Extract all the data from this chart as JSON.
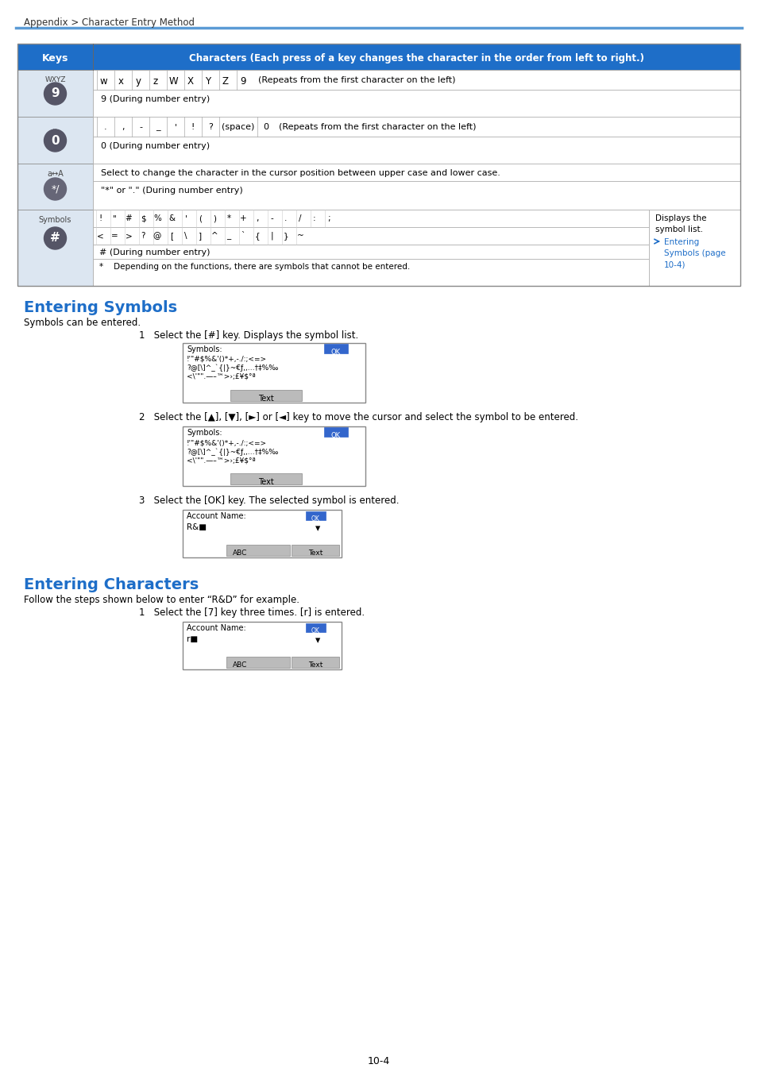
{
  "page_title": "Appendix > Character Entry Method",
  "header_color": "#1e6ec8",
  "header_text_color": "#ffffff",
  "table_bg_light": "#dce6f1",
  "table_bg_white": "#ffffff",
  "table_border": "#aaaaaa",
  "blue_line_color": "#5b9bd5",
  "text_color": "#000000",
  "link_color": "#1e6ec8",
  "section_title_color": "#1e6ec8",
  "page_number": "10-4",
  "breadcrumb": "Appendix > Character Entry Method",
  "table_header": "Characters (Each press of a key changes the character in the order from left to right.)",
  "entering_symbols_title": "Entering Symbols",
  "entering_symbols_body": "Symbols can be entered.",
  "step1_text": "1   Select the [#] key. Displays the symbol list.",
  "step2_text": "2   Select the [▲], [▼], [►] or [◄] key to move the cursor and select the symbol to be entered.",
  "step3_text": "3   Select the [OK] key. The selected symbol is entered.",
  "entering_chars_title": "Entering Characters",
  "entering_chars_body": "Follow the steps shown below to enter “R&D” for example.",
  "step4_text": "1   Select the [7] key three times. [r] is entered."
}
